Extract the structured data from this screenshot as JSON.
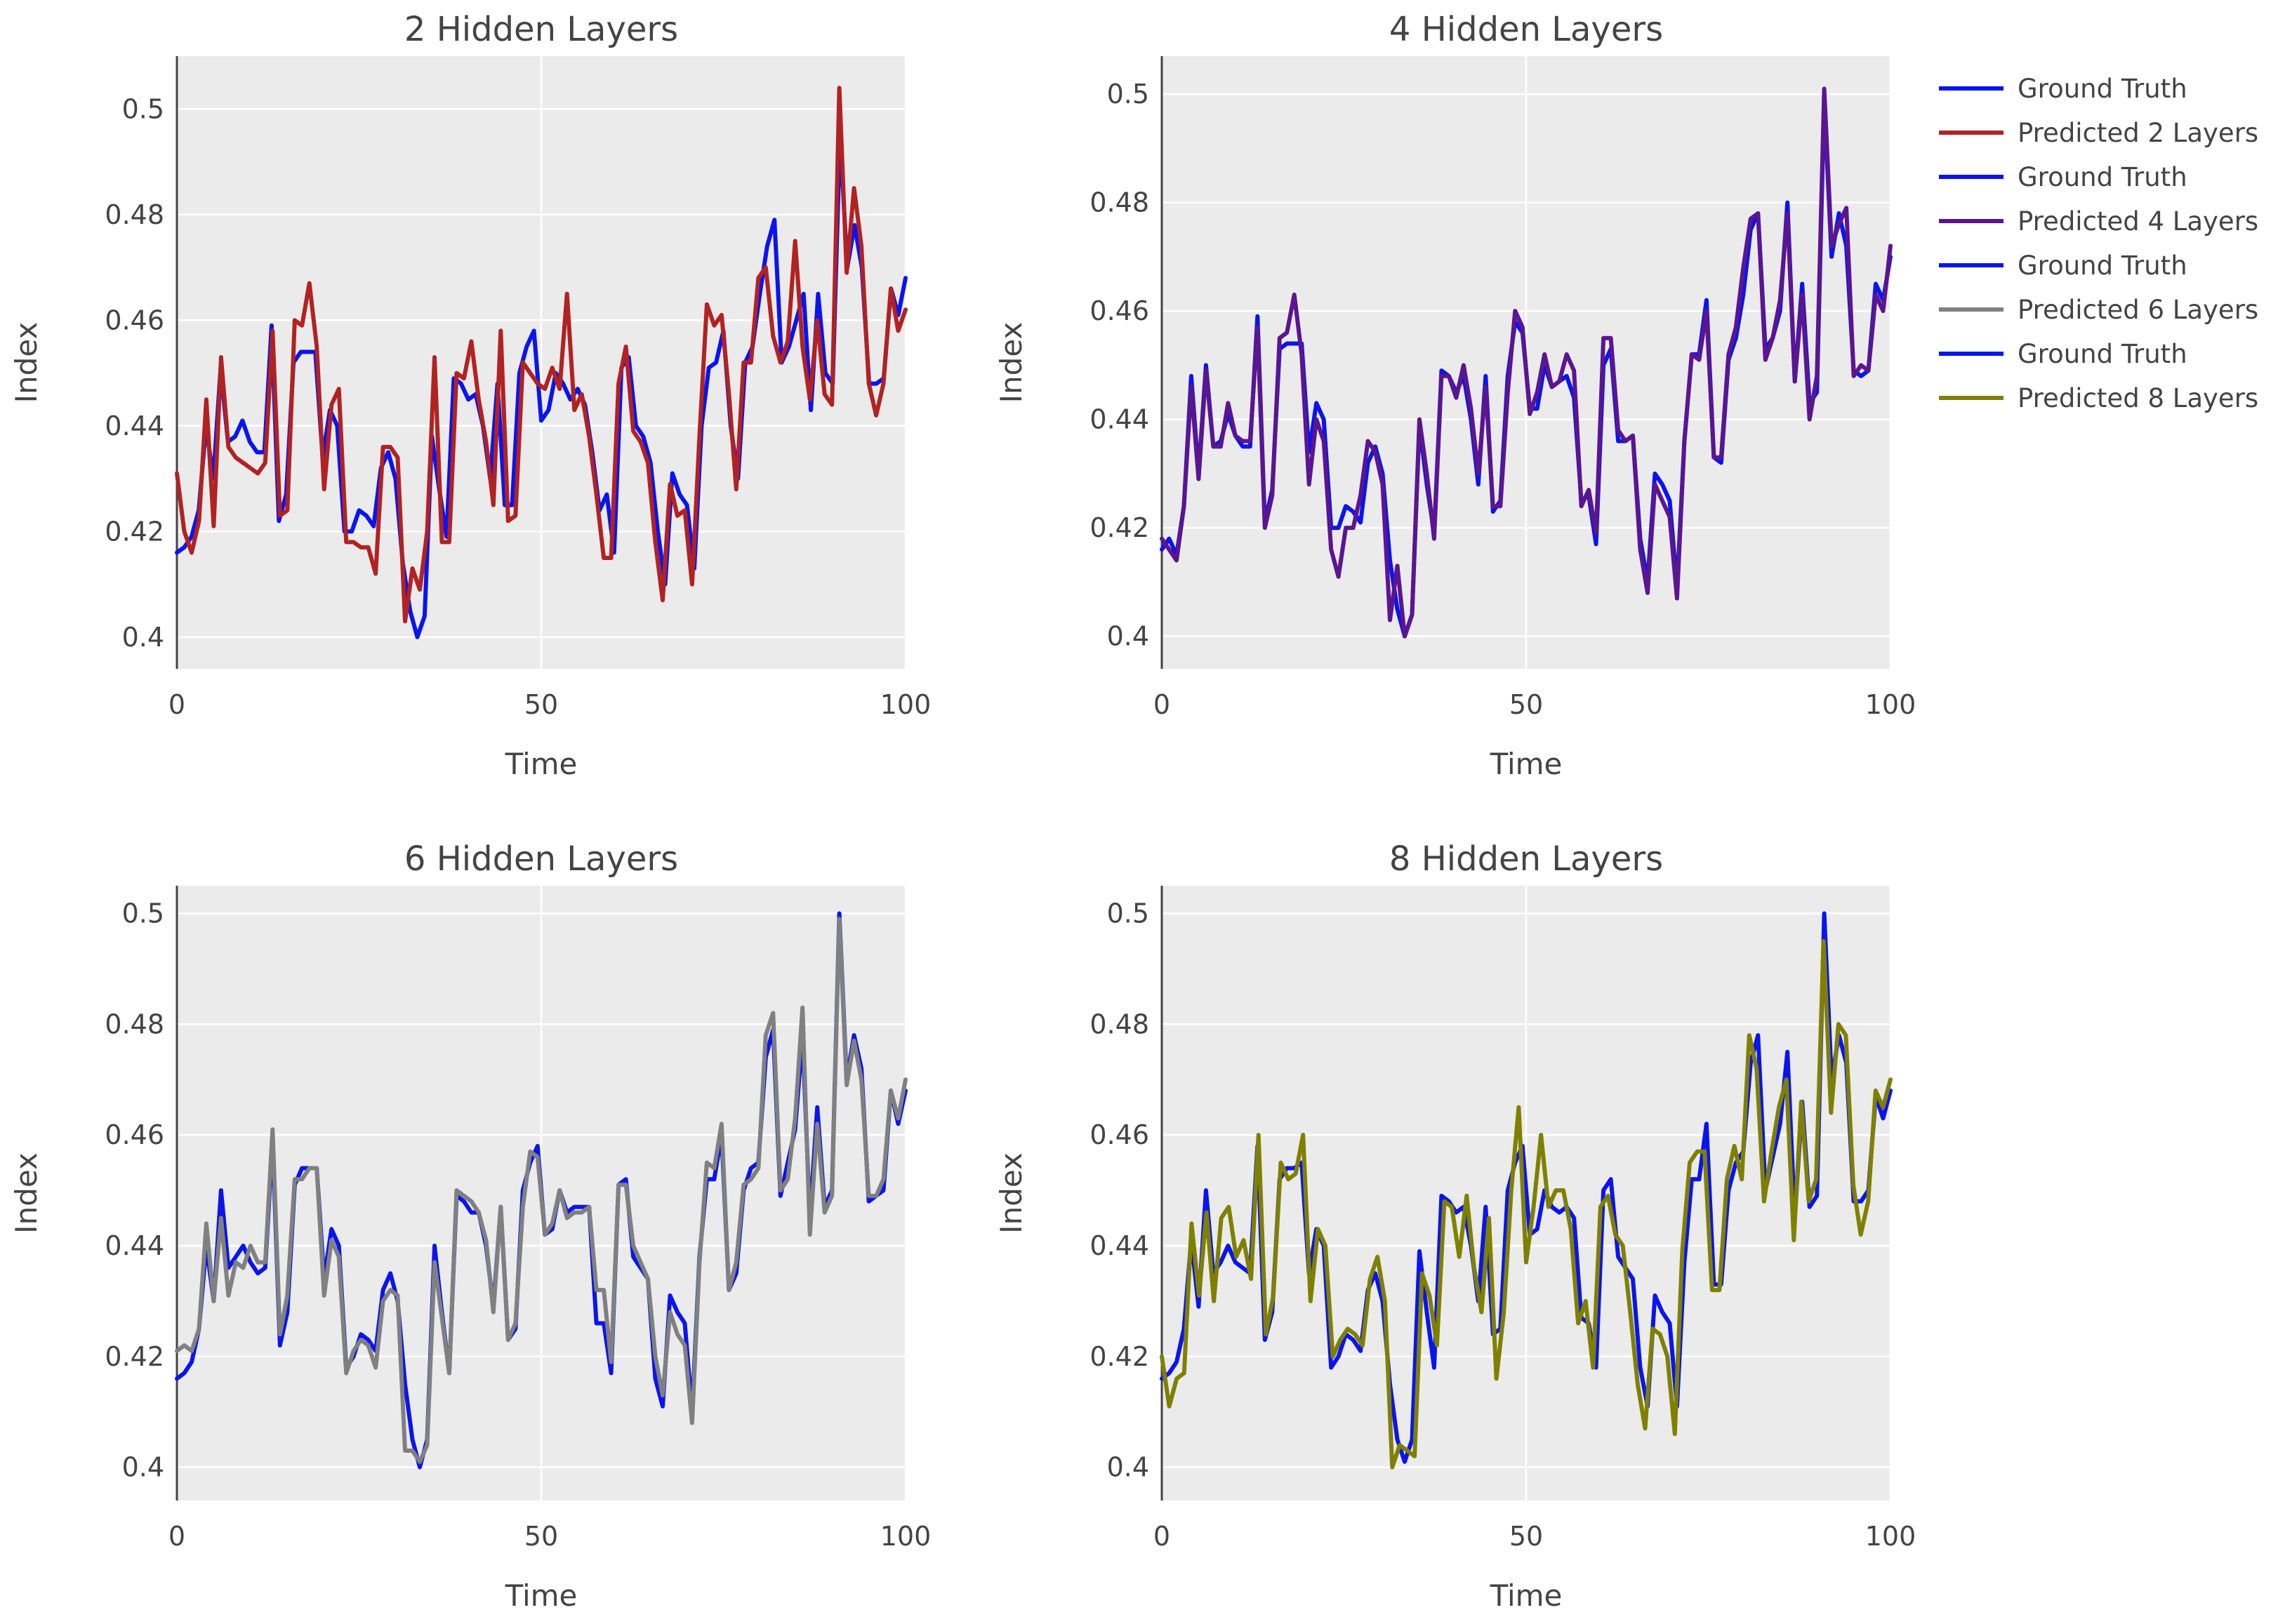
{
  "chart_data": [
    {
      "type": "line",
      "title": "2 Hidden Layers",
      "xlabel": "Time",
      "ylabel": "Index",
      "xlim": [
        0,
        100
      ],
      "ylim": [
        0.394,
        0.51
      ],
      "x_ticks": [
        "0",
        "50",
        "100"
      ],
      "y_ticks": [
        "0.4",
        "0.42",
        "0.44",
        "0.46",
        "0.48",
        "0.5"
      ],
      "series": [
        {
          "name": "Ground Truth",
          "color": "#0a14f0",
          "values": [
            0.416,
            0.417,
            0.419,
            0.424,
            0.44,
            0.43,
            0.451,
            0.437,
            0.438,
            0.441,
            0.437,
            0.435,
            0.435,
            0.459,
            0.422,
            0.427,
            0.452,
            0.454,
            0.454,
            0.454,
            0.434,
            0.443,
            0.44,
            0.42,
            0.42,
            0.424,
            0.423,
            0.421,
            0.432,
            0.435,
            0.43,
            0.414,
            0.405,
            0.4,
            0.404,
            0.438,
            0.428,
            0.419,
            0.449,
            0.448,
            0.445,
            0.446,
            0.44,
            0.43,
            0.448,
            0.425,
            0.425,
            0.45,
            0.455,
            0.458,
            0.441,
            0.443,
            0.45,
            0.448,
            0.445,
            0.447,
            0.444,
            0.435,
            0.424,
            0.427,
            0.416,
            0.451,
            0.453,
            0.44,
            0.438,
            0.433,
            0.42,
            0.41,
            0.431,
            0.427,
            0.425,
            0.413,
            0.44,
            0.451,
            0.452,
            0.458,
            0.44,
            0.43,
            0.452,
            0.455,
            0.465,
            0.474,
            0.479,
            0.452,
            0.455,
            0.46,
            0.465,
            0.443,
            0.465,
            0.45,
            0.448,
            0.495,
            0.47,
            0.478,
            0.47,
            0.448,
            0.448,
            0.449,
            0.466,
            0.461,
            0.468
          ]
        },
        {
          "name": "Predicted 2 Layers",
          "color": "#b22222",
          "values": [
            0.431,
            0.42,
            0.416,
            0.422,
            0.445,
            0.421,
            0.453,
            0.436,
            0.434,
            0.433,
            0.432,
            0.431,
            0.433,
            0.458,
            0.423,
            0.424,
            0.46,
            0.459,
            0.467,
            0.455,
            0.428,
            0.444,
            0.447,
            0.418,
            0.418,
            0.417,
            0.417,
            0.412,
            0.436,
            0.436,
            0.434,
            0.403,
            0.413,
            0.409,
            0.42,
            0.453,
            0.418,
            0.418,
            0.45,
            0.449,
            0.456,
            0.445,
            0.437,
            0.425,
            0.458,
            0.422,
            0.423,
            0.452,
            0.45,
            0.448,
            0.447,
            0.451,
            0.447,
            0.465,
            0.443,
            0.446,
            0.438,
            0.427,
            0.415,
            0.415,
            0.448,
            0.455,
            0.439,
            0.437,
            0.433,
            0.418,
            0.407,
            0.429,
            0.423,
            0.424,
            0.41,
            0.438,
            0.463,
            0.459,
            0.461,
            0.446,
            0.428,
            0.452,
            0.452,
            0.468,
            0.47,
            0.457,
            0.452,
            0.456,
            0.475,
            0.455,
            0.445,
            0.46,
            0.446,
            0.444,
            0.504,
            0.469,
            0.485,
            0.474,
            0.448,
            0.442,
            0.448,
            0.466,
            0.458,
            0.462
          ]
        }
      ]
    },
    {
      "type": "line",
      "title": "4 Hidden Layers",
      "xlabel": "Time",
      "ylabel": "Index",
      "xlim": [
        0,
        100
      ],
      "ylim": [
        0.394,
        0.507
      ],
      "x_ticks": [
        "0",
        "50",
        "100"
      ],
      "y_ticks": [
        "0.4",
        "0.42",
        "0.44",
        "0.46",
        "0.48",
        "0.5"
      ],
      "series": [
        {
          "name": "Ground Truth",
          "color": "#0a14f0",
          "values": [
            0.416,
            0.418,
            0.415,
            0.424,
            0.448,
            0.43,
            0.45,
            0.435,
            0.436,
            0.441,
            0.437,
            0.435,
            0.435,
            0.459,
            0.421,
            0.427,
            0.453,
            0.454,
            0.454,
            0.454,
            0.434,
            0.443,
            0.44,
            0.42,
            0.42,
            0.424,
            0.423,
            0.421,
            0.432,
            0.435,
            0.43,
            0.414,
            0.405,
            0.4,
            0.404,
            0.439,
            0.428,
            0.419,
            0.449,
            0.448,
            0.445,
            0.448,
            0.44,
            0.428,
            0.448,
            0.423,
            0.425,
            0.448,
            0.458,
            0.456,
            0.442,
            0.442,
            0.45,
            0.446,
            0.447,
            0.448,
            0.444,
            0.425,
            0.426,
            0.417,
            0.45,
            0.453,
            0.436,
            0.436,
            0.437,
            0.418,
            0.41,
            0.43,
            0.428,
            0.425,
            0.409,
            0.436,
            0.452,
            0.452,
            0.462,
            0.433,
            0.432,
            0.451,
            0.455,
            0.463,
            0.475,
            0.478,
            0.453,
            0.455,
            0.46,
            0.48,
            0.447,
            0.465,
            0.443,
            0.445,
            0.499,
            0.47,
            0.478,
            0.472,
            0.449,
            0.448,
            0.449,
            0.465,
            0.462,
            0.47
          ]
        },
        {
          "name": "Predicted 4 Layers",
          "color": "#5b1591",
          "values": [
            0.418,
            0.416,
            0.414,
            0.424,
            0.446,
            0.429,
            0.449,
            0.435,
            0.435,
            0.443,
            0.437,
            0.436,
            0.436,
            0.457,
            0.42,
            0.426,
            0.455,
            0.456,
            0.463,
            0.452,
            0.428,
            0.44,
            0.436,
            0.416,
            0.411,
            0.42,
            0.42,
            0.426,
            0.436,
            0.434,
            0.428,
            0.403,
            0.413,
            0.4,
            0.404,
            0.44,
            0.43,
            0.418,
            0.448,
            0.448,
            0.444,
            0.45,
            0.442,
            0.43,
            0.446,
            0.424,
            0.424,
            0.445,
            0.46,
            0.457,
            0.441,
            0.445,
            0.452,
            0.446,
            0.447,
            0.452,
            0.449,
            0.424,
            0.427,
            0.419,
            0.455,
            0.455,
            0.438,
            0.436,
            0.437,
            0.416,
            0.408,
            0.428,
            0.425,
            0.422,
            0.407,
            0.436,
            0.452,
            0.451,
            0.46,
            0.433,
            0.433,
            0.452,
            0.457,
            0.468,
            0.477,
            0.478,
            0.451,
            0.455,
            0.462,
            0.478,
            0.447,
            0.463,
            0.44,
            0.448,
            0.501,
            0.472,
            0.476,
            0.479,
            0.448,
            0.45,
            0.449,
            0.463,
            0.46,
            0.472
          ]
        }
      ]
    },
    {
      "type": "line",
      "title": "6 Hidden Layers",
      "xlabel": "Time",
      "ylabel": "Index",
      "xlim": [
        0,
        100
      ],
      "ylim": [
        0.394,
        0.505
      ],
      "x_ticks": [
        "0",
        "50",
        "100"
      ],
      "y_ticks": [
        "0.4",
        "0.42",
        "0.44",
        "0.46",
        "0.48",
        "0.5"
      ],
      "series": [
        {
          "name": "Ground Truth",
          "color": "#0a14f0",
          "values": [
            0.416,
            0.417,
            0.419,
            0.425,
            0.44,
            0.43,
            0.45,
            0.436,
            0.438,
            0.44,
            0.437,
            0.435,
            0.436,
            0.459,
            0.422,
            0.428,
            0.451,
            0.454,
            0.454,
            0.454,
            0.434,
            0.443,
            0.44,
            0.418,
            0.42,
            0.424,
            0.423,
            0.421,
            0.432,
            0.435,
            0.43,
            0.415,
            0.405,
            0.4,
            0.405,
            0.44,
            0.428,
            0.417,
            0.449,
            0.448,
            0.446,
            0.446,
            0.44,
            0.429,
            0.447,
            0.423,
            0.425,
            0.45,
            0.455,
            0.458,
            0.442,
            0.443,
            0.45,
            0.446,
            0.447,
            0.447,
            0.447,
            0.426,
            0.426,
            0.417,
            0.451,
            0.452,
            0.438,
            0.436,
            0.434,
            0.416,
            0.411,
            0.431,
            0.428,
            0.426,
            0.41,
            0.438,
            0.452,
            0.452,
            0.46,
            0.432,
            0.435,
            0.45,
            0.454,
            0.455,
            0.474,
            0.479,
            0.449,
            0.455,
            0.461,
            0.478,
            0.445,
            0.465,
            0.447,
            0.45,
            0.5,
            0.47,
            0.478,
            0.472,
            0.448,
            0.449,
            0.45,
            0.468,
            0.462,
            0.468
          ]
        },
        {
          "name": "Predicted 6 Layers",
          "color": "#808080",
          "values": [
            0.421,
            0.422,
            0.421,
            0.425,
            0.444,
            0.43,
            0.445,
            0.431,
            0.437,
            0.436,
            0.44,
            0.437,
            0.437,
            0.461,
            0.424,
            0.431,
            0.452,
            0.452,
            0.454,
            0.454,
            0.431,
            0.441,
            0.438,
            0.417,
            0.421,
            0.423,
            0.422,
            0.418,
            0.43,
            0.432,
            0.431,
            0.403,
            0.403,
            0.401,
            0.404,
            0.437,
            0.427,
            0.417,
            0.45,
            0.449,
            0.448,
            0.446,
            0.441,
            0.428,
            0.447,
            0.423,
            0.426,
            0.447,
            0.457,
            0.456,
            0.442,
            0.444,
            0.45,
            0.445,
            0.446,
            0.446,
            0.447,
            0.432,
            0.432,
            0.419,
            0.451,
            0.451,
            0.44,
            0.437,
            0.434,
            0.42,
            0.413,
            0.428,
            0.424,
            0.422,
            0.408,
            0.437,
            0.455,
            0.454,
            0.462,
            0.432,
            0.437,
            0.451,
            0.452,
            0.454,
            0.478,
            0.482,
            0.45,
            0.452,
            0.463,
            0.483,
            0.442,
            0.462,
            0.446,
            0.449,
            0.499,
            0.469,
            0.477,
            0.47,
            0.449,
            0.449,
            0.452,
            0.468,
            0.463,
            0.47
          ]
        }
      ]
    },
    {
      "type": "line",
      "title": "8 Hidden Layers",
      "xlabel": "Time",
      "ylabel": "Index",
      "xlim": [
        0,
        100
      ],
      "ylim": [
        0.394,
        0.505
      ],
      "x_ticks": [
        "0",
        "50",
        "100"
      ],
      "y_ticks": [
        "0.4",
        "0.42",
        "0.44",
        "0.46",
        "0.48",
        "0.5"
      ],
      "series": [
        {
          "name": "Ground Truth",
          "color": "#0a14f0",
          "values": [
            0.416,
            0.417,
            0.419,
            0.425,
            0.441,
            0.429,
            0.45,
            0.435,
            0.437,
            0.44,
            0.437,
            0.436,
            0.435,
            0.458,
            0.423,
            0.428,
            0.452,
            0.454,
            0.454,
            0.455,
            0.435,
            0.443,
            0.44,
            0.418,
            0.42,
            0.424,
            0.423,
            0.421,
            0.432,
            0.435,
            0.43,
            0.415,
            0.405,
            0.401,
            0.405,
            0.439,
            0.428,
            0.418,
            0.449,
            0.448,
            0.446,
            0.447,
            0.44,
            0.43,
            0.447,
            0.424,
            0.425,
            0.45,
            0.455,
            0.458,
            0.442,
            0.443,
            0.45,
            0.447,
            0.446,
            0.447,
            0.445,
            0.427,
            0.426,
            0.418,
            0.45,
            0.452,
            0.438,
            0.436,
            0.434,
            0.418,
            0.411,
            0.431,
            0.428,
            0.426,
            0.411,
            0.437,
            0.452,
            0.452,
            0.462,
            0.433,
            0.433,
            0.45,
            0.455,
            0.457,
            0.473,
            0.478,
            0.45,
            0.456,
            0.462,
            0.475,
            0.445,
            0.466,
            0.447,
            0.449,
            0.5,
            0.47,
            0.478,
            0.473,
            0.448,
            0.448,
            0.45,
            0.467,
            0.463,
            0.468
          ]
        },
        {
          "name": "Predicted 8 Layers",
          "color": "#808000",
          "values": [
            0.42,
            0.411,
            0.416,
            0.417,
            0.444,
            0.431,
            0.446,
            0.43,
            0.445,
            0.447,
            0.438,
            0.441,
            0.434,
            0.46,
            0.424,
            0.431,
            0.455,
            0.452,
            0.453,
            0.46,
            0.43,
            0.443,
            0.44,
            0.42,
            0.423,
            0.425,
            0.424,
            0.422,
            0.434,
            0.438,
            0.43,
            0.4,
            0.404,
            0.403,
            0.402,
            0.435,
            0.431,
            0.422,
            0.448,
            0.447,
            0.438,
            0.449,
            0.436,
            0.428,
            0.445,
            0.416,
            0.428,
            0.45,
            0.465,
            0.437,
            0.447,
            0.46,
            0.447,
            0.45,
            0.45,
            0.443,
            0.426,
            0.43,
            0.418,
            0.447,
            0.449,
            0.442,
            0.44,
            0.428,
            0.415,
            0.407,
            0.425,
            0.424,
            0.42,
            0.406,
            0.439,
            0.455,
            0.457,
            0.457,
            0.432,
            0.432,
            0.452,
            0.458,
            0.452,
            0.478,
            0.472,
            0.448,
            0.457,
            0.465,
            0.47,
            0.441,
            0.466,
            0.448,
            0.452,
            0.495,
            0.464,
            0.48,
            0.478,
            0.451,
            0.442,
            0.448,
            0.468,
            0.465,
            0.47
          ]
        }
      ]
    }
  ],
  "legend": {
    "position": "top-right",
    "entries": [
      {
        "label": "Ground Truth",
        "color": "#0a14f0"
      },
      {
        "label": "Predicted 2 Layers",
        "color": "#b22222"
      },
      {
        "label": "Ground Truth",
        "color": "#0a14f0"
      },
      {
        "label": "Predicted 4 Layers",
        "color": "#5b1591"
      },
      {
        "label": "Ground Truth",
        "color": "#0a14f0"
      },
      {
        "label": "Predicted 6 Layers",
        "color": "#808080"
      },
      {
        "label": "Ground Truth",
        "color": "#0a14f0"
      },
      {
        "label": "Predicted 8 Layers",
        "color": "#808000"
      }
    ]
  }
}
